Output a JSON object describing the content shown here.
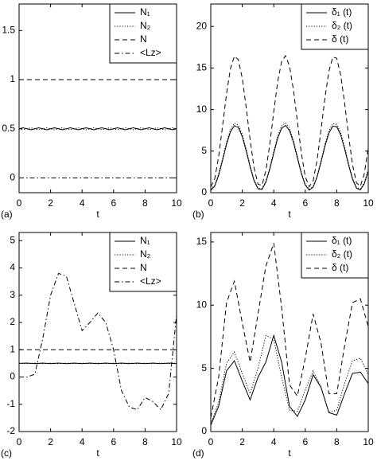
{
  "chart_data": [
    {
      "type": "line",
      "panel_label": "(a)",
      "xlabel": "t",
      "legend": "upper right",
      "x": [
        0,
        0.25,
        0.5,
        0.75,
        1,
        1.25,
        1.5,
        1.75,
        2,
        2.25,
        2.5,
        2.75,
        3,
        3.25,
        3.5,
        3.75,
        4,
        4.25,
        4.5,
        4.75,
        5,
        5.25,
        5.5,
        5.75,
        6,
        6.25,
        6.5,
        6.75,
        7,
        7.25,
        7.5,
        7.75,
        8,
        8.25,
        8.5,
        8.75,
        9,
        9.25,
        9.5,
        9.75,
        10
      ],
      "xlim": [
        0,
        10
      ],
      "xticks": [
        0,
        2,
        4,
        6,
        8,
        10
      ],
      "ylim": [
        -0.15,
        1.77
      ],
      "yticks": [
        0,
        0.5,
        1,
        1.5
      ],
      "series": [
        {
          "name": "N₁",
          "color": "#000000",
          "dash": "solid",
          "values": [
            0.5,
            0.51,
            0.5,
            0.49,
            0.5,
            0.51,
            0.5,
            0.49,
            0.5,
            0.51,
            0.5,
            0.49,
            0.5,
            0.51,
            0.5,
            0.49,
            0.5,
            0.51,
            0.5,
            0.49,
            0.5,
            0.51,
            0.5,
            0.49,
            0.5,
            0.51,
            0.5,
            0.49,
            0.5,
            0.51,
            0.5,
            0.49,
            0.5,
            0.51,
            0.5,
            0.49,
            0.5,
            0.51,
            0.5,
            0.49,
            0.5
          ]
        },
        {
          "name": "N₂",
          "color": "#000000",
          "dash": "dotted",
          "values": [
            0.5,
            0.49,
            0.5,
            0.51,
            0.5,
            0.49,
            0.5,
            0.51,
            0.5,
            0.49,
            0.5,
            0.51,
            0.5,
            0.49,
            0.5,
            0.51,
            0.5,
            0.49,
            0.5,
            0.51,
            0.5,
            0.49,
            0.5,
            0.51,
            0.5,
            0.49,
            0.5,
            0.51,
            0.5,
            0.49,
            0.5,
            0.51,
            0.5,
            0.49,
            0.5,
            0.51,
            0.5,
            0.49,
            0.5,
            0.51,
            0.5
          ]
        },
        {
          "name": "N",
          "color": "#000000",
          "dash": "dashed",
          "values": [
            1,
            1,
            1,
            1,
            1,
            1,
            1,
            1,
            1,
            1,
            1,
            1,
            1,
            1,
            1,
            1,
            1,
            1,
            1,
            1,
            1,
            1,
            1,
            1,
            1,
            1,
            1,
            1,
            1,
            1,
            1,
            1,
            1,
            1,
            1,
            1,
            1,
            1,
            1,
            1,
            1
          ]
        },
        {
          "name": "<Lz>",
          "color": "#000000",
          "dash": "dashdot",
          "values": [
            0,
            0,
            0,
            0,
            0,
            0,
            0,
            0,
            0,
            0,
            0,
            0,
            0,
            0,
            0,
            0,
            0,
            0,
            0,
            0,
            0,
            0,
            0,
            0,
            0,
            0,
            0,
            0,
            0,
            0,
            0,
            0,
            0,
            0,
            0,
            0,
            0,
            0,
            0,
            0,
            0
          ]
        }
      ]
    },
    {
      "type": "line",
      "panel_label": "(b)",
      "xlabel": "t",
      "legend": "upper right",
      "x": [
        0,
        0.25,
        0.5,
        0.75,
        1,
        1.25,
        1.5,
        1.75,
        2,
        2.25,
        2.5,
        2.75,
        3,
        3.25,
        3.5,
        3.75,
        4,
        4.25,
        4.5,
        4.75,
        5,
        5.25,
        5.5,
        5.75,
        6,
        6.25,
        6.5,
        6.75,
        7,
        7.25,
        7.5,
        7.75,
        8,
        8.25,
        8.5,
        8.75,
        9,
        9.25,
        9.5,
        9.75,
        10
      ],
      "xlim": [
        0,
        10
      ],
      "xticks": [
        0,
        2,
        4,
        6,
        8,
        10
      ],
      "ylim": [
        0,
        22.7
      ],
      "yticks": [
        0,
        5,
        10,
        15,
        20
      ],
      "series": [
        {
          "name": "δ₁ (t)",
          "color": "#000000",
          "dash": "solid",
          "values": [
            0.3,
            0.78,
            2.09,
            3.92,
            5.82,
            7.32,
            8.06,
            7.85,
            6.75,
            5.02,
            3.09,
            1.43,
            0.46,
            0.39,
            1.26,
            2.85,
            4.77,
            6.55,
            7.75,
            8.09,
            7.47,
            6.06,
            4.18,
            2.32,
            0.91,
            0.31,
            0.66,
            1.88,
            3.67,
            5.58,
            7.16,
            8.01,
            7.94,
            6.94,
            5.27,
            3.34,
            1.63,
            0.54,
            0.34,
            1.09,
            2.61
          ]
        },
        {
          "name": "δ₂ (t)",
          "color": "#000000",
          "dash": "dotted",
          "values": [
            0.4,
            0.89,
            2.24,
            4.12,
            6.06,
            7.6,
            8.36,
            8.14,
            7.02,
            5.24,
            3.26,
            1.56,
            0.56,
            0.49,
            1.38,
            3.01,
            4.98,
            6.81,
            8.04,
            8.39,
            7.76,
            6.3,
            4.38,
            2.47,
            1.02,
            0.41,
            0.77,
            2.02,
            3.85,
            5.82,
            7.44,
            8.31,
            8.23,
            7.21,
            5.5,
            3.52,
            1.76,
            0.65,
            0.44,
            1.21,
            2.77
          ]
        },
        {
          "name": "δ (t)",
          "color": "#000000",
          "dash": "dashed",
          "values": [
            0.7,
            1.67,
            4.33,
            8.04,
            11.88,
            14.92,
            16.42,
            15.99,
            13.77,
            10.26,
            6.35,
            2.99,
            1.02,
            0.88,
            2.64,
            5.86,
            9.75,
            13.36,
            15.79,
            16.48,
            15.23,
            12.36,
            8.56,
            4.79,
            1.93,
            0.72,
            1.43,
            3.9,
            7.52,
            11.4,
            14.6,
            16.32,
            16.17,
            14.15,
            10.77,
            6.86,
            3.39,
            1.19,
            0.78,
            2.3,
            5.38
          ]
        }
      ]
    },
    {
      "type": "line",
      "panel_label": "(c)",
      "xlabel": "t",
      "legend": "upper right",
      "x": [
        0,
        0.5,
        1,
        1.5,
        2,
        2.5,
        3,
        3.5,
        4,
        4.5,
        5,
        5.5,
        6,
        6.5,
        7,
        7.5,
        8,
        8.5,
        9,
        9.5,
        10
      ],
      "xlim": [
        0,
        10
      ],
      "xticks": [
        0,
        2,
        4,
        6,
        8,
        10
      ],
      "ylim": [
        -2,
        5.3
      ],
      "yticks": [
        -2,
        -1,
        0,
        1,
        2,
        3,
        4,
        5
      ],
      "series": [
        {
          "name": "N₁",
          "color": "#000000",
          "dash": "solid",
          "values": [
            0.5,
            0.51,
            0.49,
            0.51,
            0.49,
            0.51,
            0.49,
            0.51,
            0.49,
            0.51,
            0.49,
            0.51,
            0.49,
            0.51,
            0.49,
            0.51,
            0.49,
            0.51,
            0.49,
            0.51,
            0.49
          ]
        },
        {
          "name": "N₂",
          "color": "#000000",
          "dash": "dotted",
          "values": [
            0.5,
            0.49,
            0.51,
            0.49,
            0.51,
            0.49,
            0.51,
            0.49,
            0.51,
            0.49,
            0.51,
            0.49,
            0.51,
            0.49,
            0.51,
            0.49,
            0.51,
            0.49,
            0.51,
            0.49,
            0.51
          ]
        },
        {
          "name": "N",
          "color": "#000000",
          "dash": "dashed",
          "values": [
            1,
            1,
            1,
            1,
            1,
            1,
            1,
            1,
            1,
            1,
            1,
            1,
            1,
            1,
            1,
            1,
            1,
            1,
            1,
            1,
            1
          ]
        },
        {
          "name": "<Lz>",
          "color": "#000000",
          "dash": "dashdot",
          "values": [
            0,
            0,
            0.1,
            1.4,
            3.0,
            3.8,
            3.7,
            2.7,
            1.7,
            2.0,
            2.35,
            2.0,
            1.0,
            -0.5,
            -1.1,
            -1.2,
            -0.75,
            -0.9,
            -1.2,
            -0.6,
            2.3
          ]
        }
      ]
    },
    {
      "type": "line",
      "panel_label": "(d)",
      "xlabel": "t",
      "legend": "upper right",
      "x": [
        0,
        0.5,
        1,
        1.5,
        2,
        2.5,
        3,
        3.5,
        4,
        4.5,
        5,
        5.5,
        6,
        6.5,
        7,
        7.5,
        8,
        8.5,
        9,
        9.5,
        10
      ],
      "xlim": [
        0,
        10
      ],
      "xticks": [
        0,
        2,
        4,
        6,
        8,
        10
      ],
      "ylim": [
        0,
        15.75
      ],
      "yticks": [
        0,
        5,
        10,
        15
      ],
      "series": [
        {
          "name": "δ₁ (t)",
          "color": "#000000",
          "dash": "solid",
          "values": [
            0.5,
            2.0,
            4.8,
            5.6,
            4.0,
            2.5,
            4.3,
            5.5,
            7.6,
            5.5,
            2.0,
            1.2,
            2.5,
            4.5,
            3.5,
            1.5,
            1.3,
            3.0,
            4.6,
            4.7,
            3.8
          ]
        },
        {
          "name": "δ₂ (t)",
          "color": "#000000",
          "dash": "dotted",
          "values": [
            0.6,
            2.3,
            5.4,
            6.3,
            4.6,
            3.0,
            5.0,
            7.6,
            7.3,
            4.3,
            1.7,
            1.6,
            3.3,
            4.8,
            3.5,
            1.5,
            1.7,
            3.8,
            5.6,
            5.8,
            4.5
          ]
        },
        {
          "name": "δ (t)",
          "color": "#000000",
          "dash": "dashed",
          "values": [
            1.1,
            4.3,
            10.2,
            11.9,
            8.6,
            5.5,
            9.3,
            13.1,
            14.9,
            9.8,
            3.7,
            2.8,
            5.8,
            9.3,
            7.0,
            3.0,
            3.0,
            6.8,
            10.2,
            10.5,
            8.3
          ]
        }
      ]
    }
  ]
}
